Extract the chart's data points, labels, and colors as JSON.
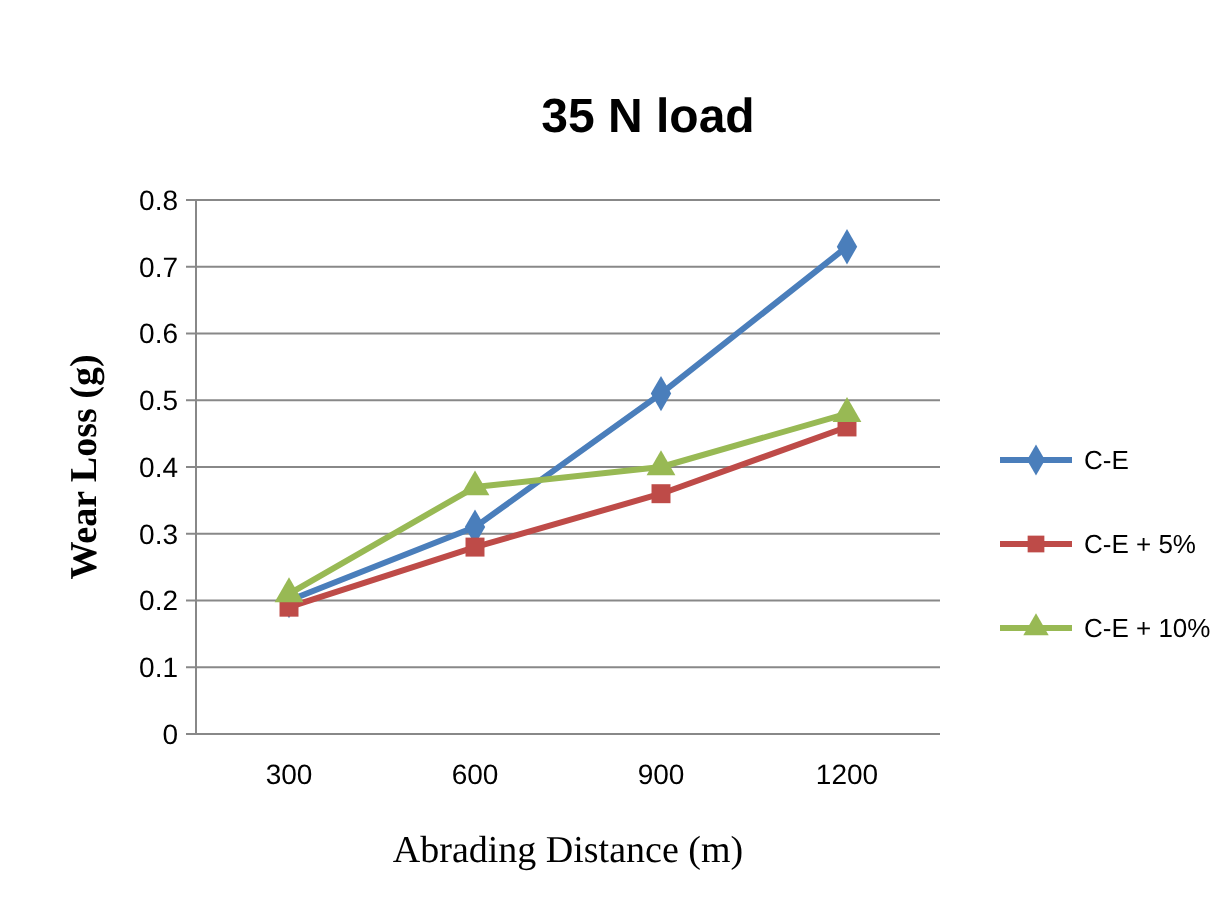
{
  "chart_data": {
    "type": "line",
    "title": "35 N load",
    "xlabel": "Abrading Distance (m)",
    "ylabel": "Wear Loss (g)",
    "categories": [
      "300",
      "600",
      "900",
      "1200"
    ],
    "series": [
      {
        "name": "C-E",
        "color": "#4a7ebb",
        "marker": "diamond",
        "values": [
          0.2,
          0.31,
          0.51,
          0.73
        ]
      },
      {
        "name": "C-E + 5%",
        "color": "#be4b48",
        "marker": "square",
        "values": [
          0.19,
          0.28,
          0.36,
          0.46
        ]
      },
      {
        "name": "C-E + 10%",
        "color": "#98b954",
        "marker": "triangle",
        "values": [
          0.21,
          0.37,
          0.4,
          0.48
        ]
      }
    ],
    "ylim": [
      0,
      0.8
    ],
    "yticks": [
      0,
      0.1,
      0.2,
      0.3,
      0.4,
      0.5,
      0.6,
      0.7,
      0.8
    ],
    "grid": "y",
    "legend": "right"
  }
}
